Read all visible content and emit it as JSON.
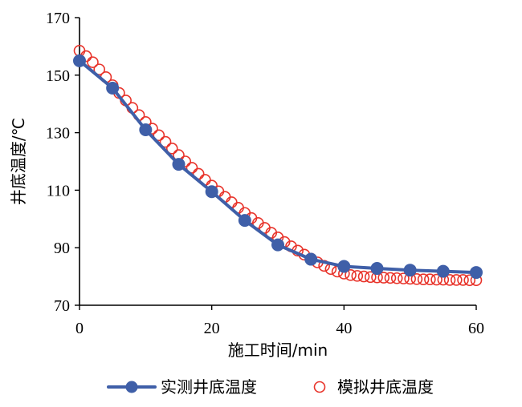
{
  "chart_data": {
    "type": "scatter",
    "xlabel": "施工时间/min",
    "ylabel": "井底温度/℃",
    "xlim": [
      0,
      60
    ],
    "ylim": [
      70,
      170
    ],
    "xticks": [
      0,
      20,
      40,
      60
    ],
    "yticks": [
      70,
      90,
      110,
      130,
      150,
      170
    ],
    "xtick_labels": [
      "0",
      "20",
      "40",
      "60"
    ],
    "ytick_labels": [
      "70",
      "90",
      "110",
      "130",
      "150",
      "170"
    ],
    "grid": false,
    "legend_position": "bottom",
    "series": [
      {
        "name": "实测井底温度",
        "style": "line-with-filled-markers",
        "color": "#3F5FA8",
        "x": [
          0,
          5,
          10,
          15,
          20,
          25,
          30,
          35,
          40,
          45,
          50,
          55,
          60
        ],
        "y": [
          155,
          145.5,
          131,
          119,
          109.5,
          99.5,
          91,
          86,
          83.5,
          82.8,
          82.2,
          81.8,
          81.4
        ]
      },
      {
        "name": "模拟井底温度",
        "style": "open-circles",
        "color": "#E8332A",
        "x": [
          0,
          1,
          2,
          3,
          4,
          5,
          6,
          7,
          8,
          9,
          10,
          11,
          12,
          13,
          14,
          15,
          16,
          17,
          18,
          19,
          20,
          21,
          22,
          23,
          24,
          25,
          26,
          27,
          28,
          29,
          30,
          31,
          32,
          33,
          34,
          35,
          36,
          37,
          38,
          39,
          40,
          41,
          42,
          43,
          44,
          45,
          46,
          47,
          48,
          49,
          50,
          51,
          52,
          53,
          54,
          55,
          56,
          57,
          58,
          59,
          60
        ],
        "y": [
          158.5,
          156.6,
          154.5,
          152.0,
          149.3,
          146.5,
          143.8,
          141.2,
          138.6,
          136.1,
          133.7,
          131.4,
          129.1,
          126.8,
          124.5,
          122.2,
          120.0,
          117.8,
          115.7,
          113.6,
          111.6,
          109.6,
          107.7,
          105.8,
          103.9,
          102.1,
          100.3,
          98.6,
          96.9,
          95.2,
          93.6,
          92.0,
          90.5,
          89.0,
          87.6,
          86.2,
          84.9,
          83.7,
          82.6,
          81.7,
          81.0,
          80.5,
          80.2,
          80.0,
          79.8,
          79.7,
          79.6,
          79.5,
          79.4,
          79.3,
          79.2,
          79.1,
          79.0,
          79.0,
          78.9,
          78.9,
          78.8,
          78.8,
          78.8,
          78.7,
          78.7
        ]
      }
    ]
  }
}
